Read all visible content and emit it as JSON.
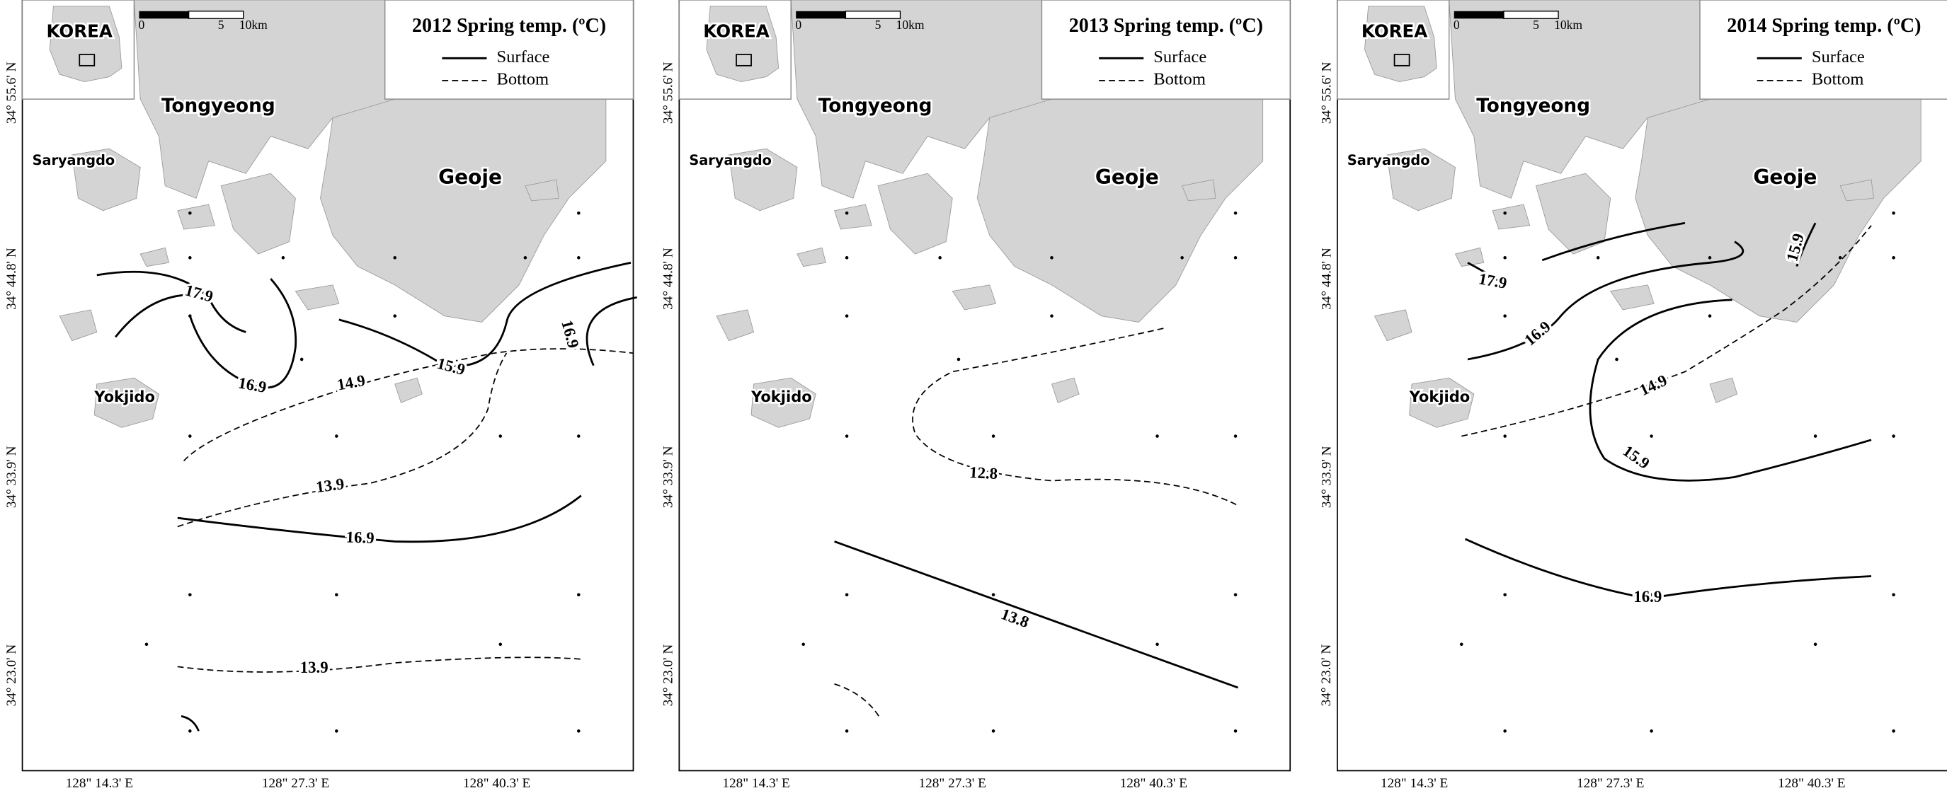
{
  "panels": [
    {
      "title": "2012 Spring temp. (ºC)",
      "legend": [
        "Surface",
        "Bottom"
      ],
      "inset_label": "KOREA",
      "scale_labels": [
        "0",
        "5",
        "10km"
      ],
      "places": [
        "Tongyeong",
        "Saryangdo",
        "Geoje",
        "Yokjido"
      ],
      "contour_labels": [
        "17.9",
        "16.9",
        "15.9",
        "16.9",
        "14.9",
        "13.9",
        "16.9",
        "13.9"
      ],
      "y_labels": [
        "34° 55.6' N",
        "34° 44.8' N",
        "34° 33.9' N",
        "34° 23.0' N"
      ],
      "x_labels": [
        "128\" 14.3' E",
        "128\" 27.3' E",
        "128\" 40.3' E"
      ]
    },
    {
      "title": "2013 Spring temp. (ºC)",
      "legend": [
        "Surface",
        "Bottom"
      ],
      "inset_label": "KOREA",
      "scale_labels": [
        "0",
        "5",
        "10km"
      ],
      "places": [
        "Tongyeong",
        "Saryangdo",
        "Geoje",
        "Yokjido"
      ],
      "contour_labels": [
        "12.8",
        "13.8"
      ],
      "y_labels": [
        "34° 55.6' N",
        "34° 44.8' N",
        "34° 33.9' N",
        "34° 23.0' N"
      ],
      "x_labels": [
        "128\" 14.3' E",
        "128\" 27.3' E",
        "128\" 40.3' E"
      ]
    },
    {
      "title": "2014 Spring temp. (ºC)",
      "legend": [
        "Surface",
        "Bottom"
      ],
      "inset_label": "KOREA",
      "scale_labels": [
        "0",
        "5",
        "10km"
      ],
      "places": [
        "Tongyeong",
        "Saryangdo",
        "Geoje",
        "Yokjido"
      ],
      "contour_labels": [
        "17.9",
        "16.9",
        "15.9",
        "15.9",
        "14.9",
        "16.9"
      ],
      "y_labels": [
        "34° 55.6' N",
        "34° 44.8' N",
        "34° 33.9' N",
        "34° 23.0' N"
      ],
      "x_labels": [
        "128\" 14.3' E",
        "128\" 27.3' E",
        "128\" 40.3' E"
      ]
    }
  ]
}
